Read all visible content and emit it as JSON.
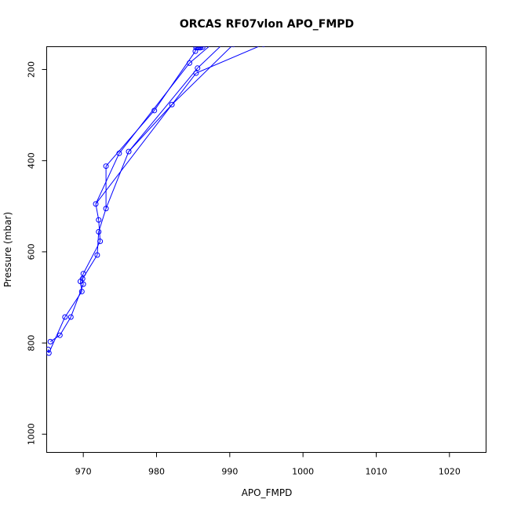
{
  "chart_data": {
    "type": "line",
    "title": "ORCAS RF07vlon APO_FMPD",
    "xlabel": "APO_FMPD",
    "ylabel": "Pressure (mbar)",
    "xlim": [
      965,
      1025
    ],
    "ylim": [
      1040,
      150
    ],
    "y_inverted": true,
    "grid": false,
    "x_ticks": [
      970,
      980,
      990,
      1000,
      1010,
      1020
    ],
    "y_ticks": [
      200,
      400,
      600,
      800,
      1000
    ],
    "series": [
      {
        "color": "#0000ff",
        "marker": "open-circle",
        "points": [
          [
            965.3,
            822
          ],
          [
            965.2,
            814
          ],
          [
            965.5,
            797
          ],
          [
            966.8,
            783
          ],
          [
            967.5,
            743
          ],
          [
            968.3,
            743
          ],
          [
            969.8,
            687
          ],
          [
            970.0,
            671
          ],
          [
            969.6,
            665
          ],
          [
            969.9,
            659
          ],
          [
            970.0,
            648
          ],
          [
            971.9,
            607
          ],
          [
            972.3,
            577
          ],
          [
            972.1,
            556
          ],
          [
            972.1,
            530
          ],
          [
            973.1,
            505
          ],
          [
            971.7,
            495
          ],
          [
            973.1,
            412
          ],
          [
            974.9,
            384
          ],
          [
            976.2,
            380
          ],
          [
            979.7,
            290
          ],
          [
            982.1,
            277
          ],
          [
            984.5,
            186
          ],
          [
            985.4,
            208
          ],
          [
            985.6,
            197
          ],
          [
            985.3,
            160
          ],
          [
            985.4,
            152
          ],
          [
            985.6,
            152
          ],
          [
            985.8,
            152
          ],
          [
            986.0,
            152
          ],
          [
            986.3,
            151
          ],
          [
            986.0,
            152
          ],
          [
            985.4,
            152
          ],
          [
            990.5,
            145
          ],
          [
            994.6,
            145
          ]
        ],
        "segments": [
          [
            [
              965.3,
              822
            ],
            [
              965.2,
              814
            ]
          ],
          [
            [
              965.5,
              797
            ],
            [
              966.8,
              783
            ]
          ],
          [
            [
              965.3,
              822
            ],
            [
              967.5,
              743
            ]
          ],
          [
            [
              966.8,
              783
            ],
            [
              968.3,
              743
            ]
          ],
          [
            [
              967.5,
              743
            ],
            [
              969.8,
              687
            ]
          ],
          [
            [
              968.3,
              743
            ],
            [
              970.0,
              671
            ]
          ],
          [
            [
              969.8,
              687
            ],
            [
              969.6,
              665
            ]
          ],
          [
            [
              970.0,
              671
            ],
            [
              969.9,
              659
            ]
          ],
          [
            [
              969.6,
              665
            ],
            [
              970.0,
              648
            ]
          ],
          [
            [
              969.9,
              659
            ],
            [
              971.9,
              607
            ]
          ],
          [
            [
              970.0,
              648
            ],
            [
              972.3,
              577
            ]
          ],
          [
            [
              971.9,
              607
            ],
            [
              972.1,
              556
            ]
          ],
          [
            [
              972.3,
              577
            ],
            [
              972.1,
              530
            ]
          ],
          [
            [
              972.1,
              556
            ],
            [
              973.1,
              505
            ]
          ],
          [
            [
              972.1,
              530
            ],
            [
              971.7,
              495
            ]
          ],
          [
            [
              973.1,
              505
            ],
            [
              973.1,
              412
            ]
          ],
          [
            [
              971.7,
              495
            ],
            [
              974.9,
              384
            ]
          ],
          [
            [
              973.1,
              505
            ],
            [
              976.2,
              380
            ]
          ],
          [
            [
              973.1,
              412
            ],
            [
              979.7,
              290
            ]
          ],
          [
            [
              976.2,
              380
            ],
            [
              982.1,
              277
            ]
          ],
          [
            [
              974.9,
              384
            ],
            [
              984.5,
              186
            ]
          ],
          [
            [
              971.7,
              495
            ],
            [
              985.4,
              208
            ]
          ],
          [
            [
              979.7,
              290
            ],
            [
              985.3,
              160
            ]
          ],
          [
            [
              976.2,
              380
            ],
            [
              985.6,
              197
            ]
          ],
          [
            [
              982.1,
              277
            ],
            [
              990.5,
              145
            ]
          ],
          [
            [
              985.4,
              208
            ],
            [
              994.6,
              145
            ]
          ],
          [
            [
              984.5,
              186
            ],
            [
              987.5,
              145
            ]
          ],
          [
            [
              985.6,
              197
            ],
            [
              989.0,
              145
            ]
          ],
          [
            [
              985.3,
              160
            ],
            [
              985.4,
              152
            ]
          ],
          [
            [
              985.4,
              152
            ],
            [
              985.8,
              152
            ]
          ],
          [
            [
              985.8,
              152
            ],
            [
              986.3,
              151
            ]
          ],
          [
            [
              986.0,
              152
            ],
            [
              988.0,
              145
            ]
          ],
          [
            [
              985.6,
              152
            ],
            [
              986.0,
              145
            ]
          ]
        ]
      }
    ]
  }
}
